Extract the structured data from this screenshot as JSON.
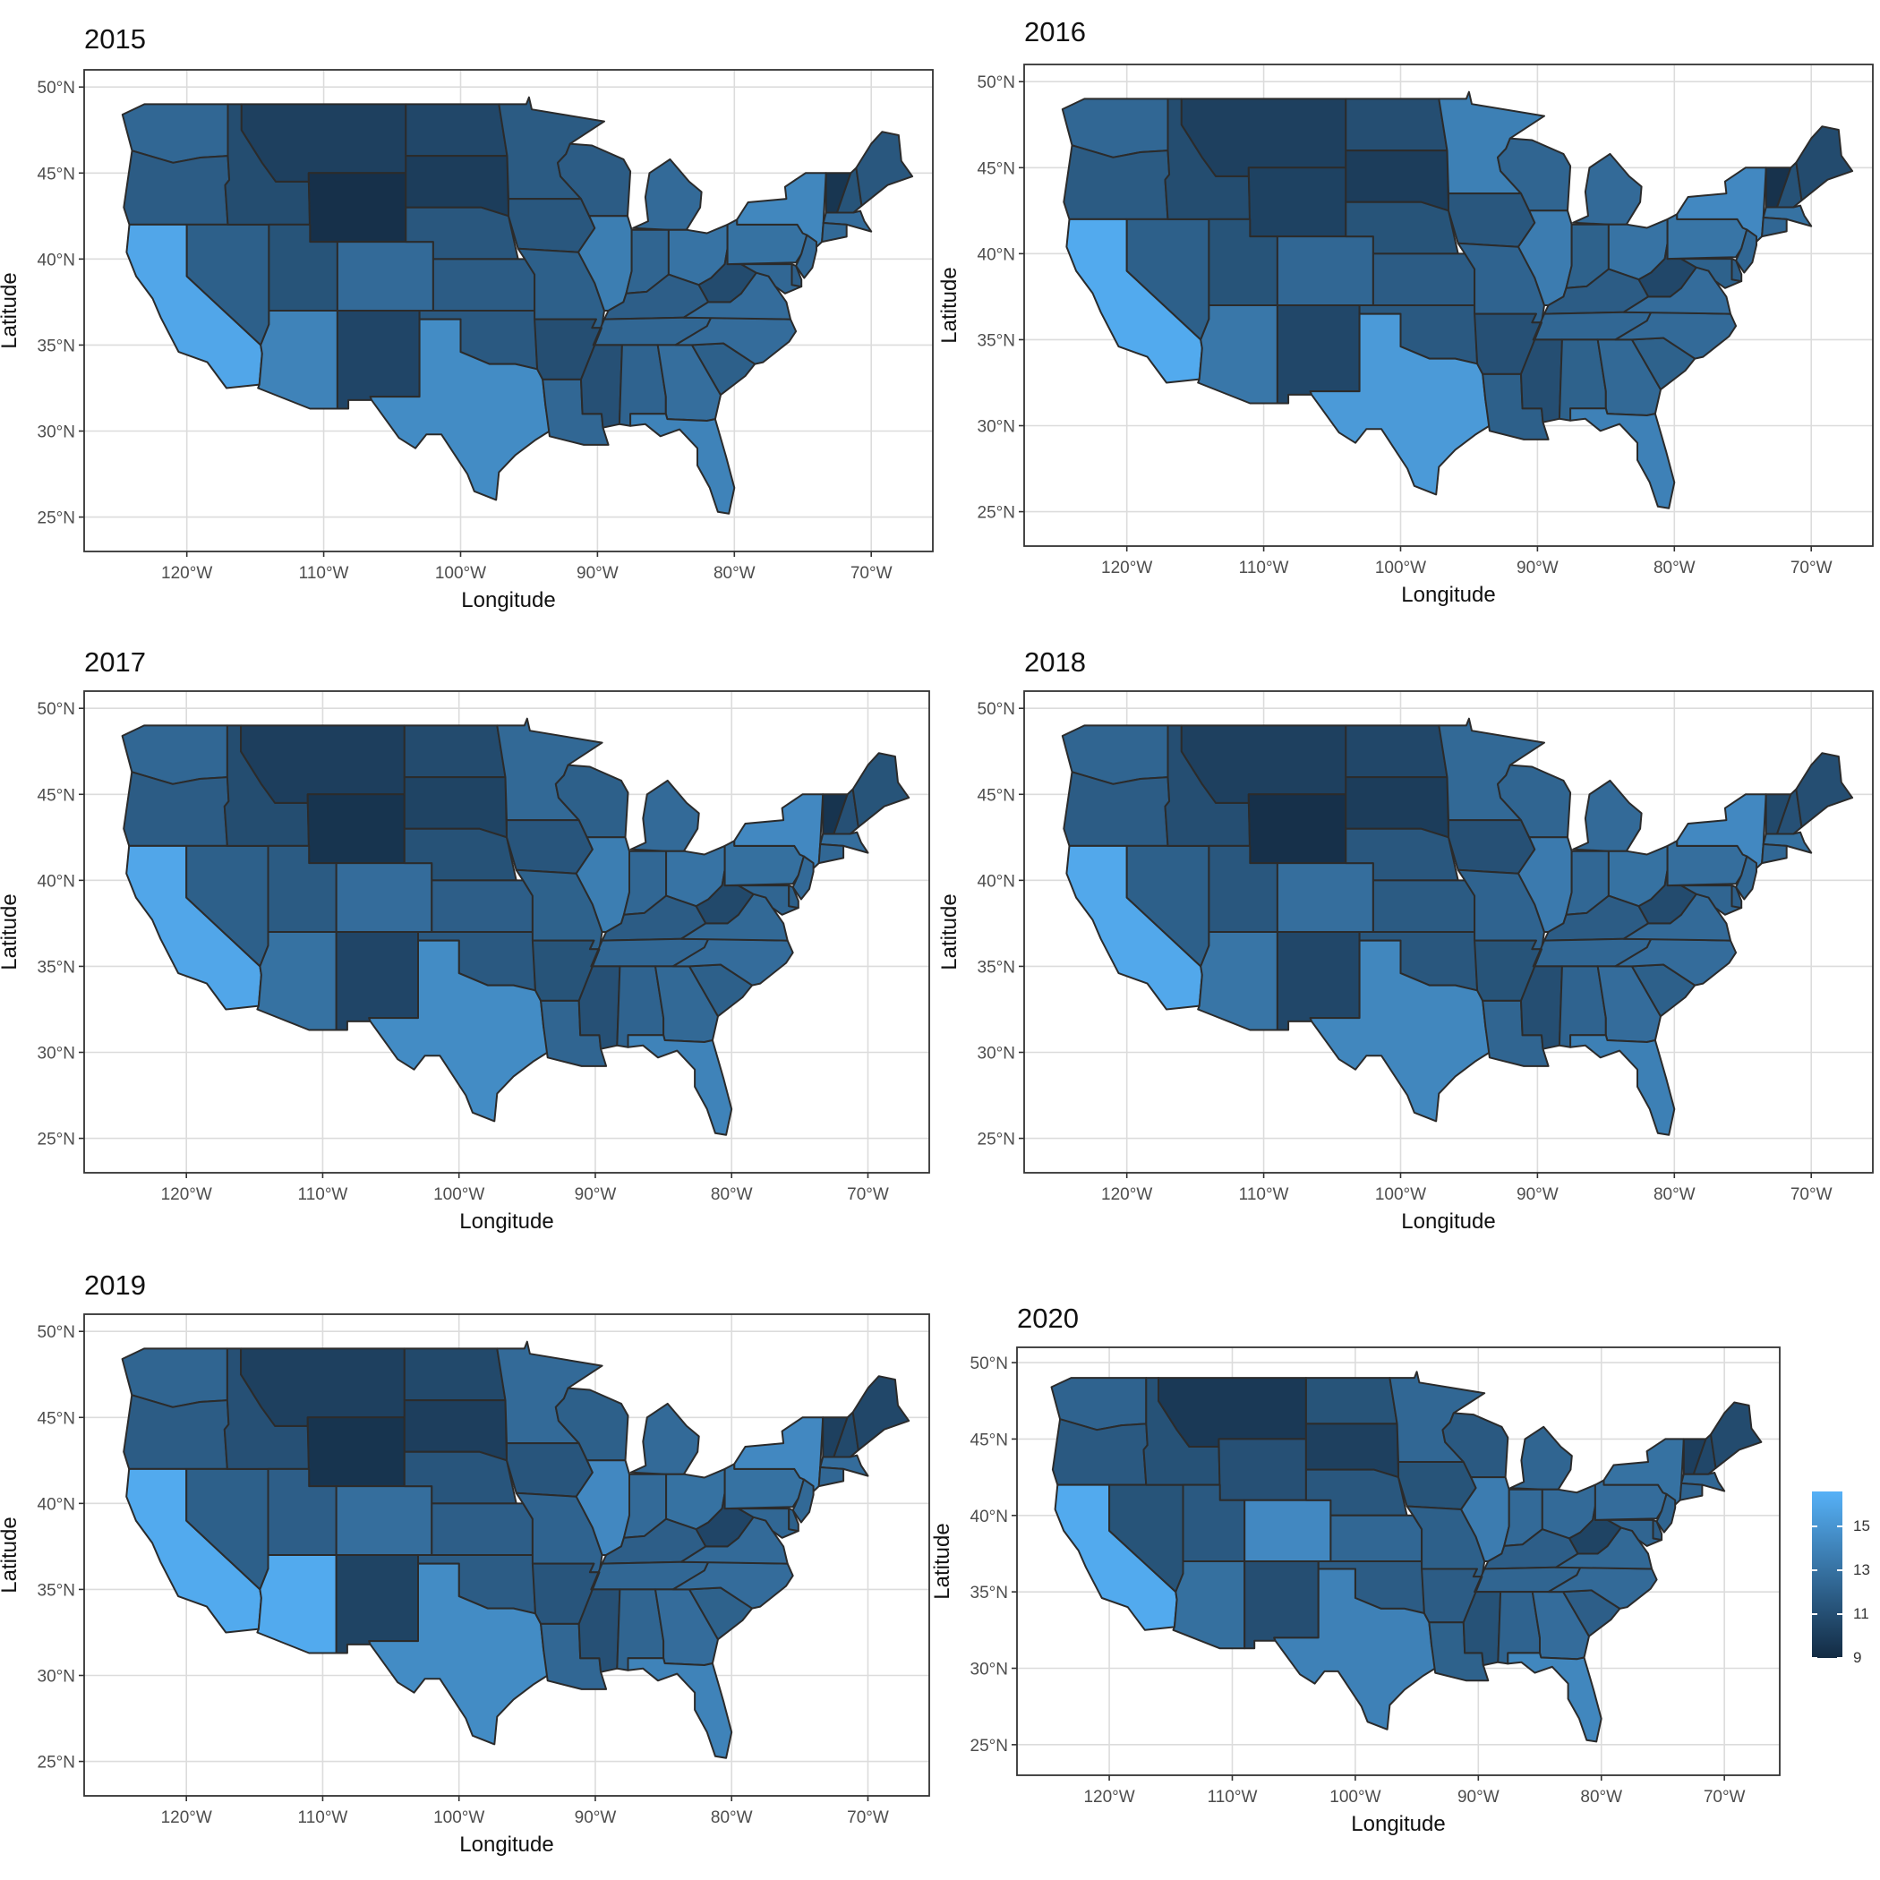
{
  "figure": {
    "x_axis_title": "Longitude",
    "y_axis_title": "Latitude",
    "lon_ticks": [
      {
        "value": -120,
        "label": "120°W"
      },
      {
        "value": -110,
        "label": "110°W"
      },
      {
        "value": -100,
        "label": "100°W"
      },
      {
        "value": -90,
        "label": "90°W"
      },
      {
        "value": -80,
        "label": "80°W"
      },
      {
        "value": -70,
        "label": "70°W"
      }
    ],
    "lat_ticks": [
      {
        "value": 25,
        "label": "25°N"
      },
      {
        "value": 30,
        "label": "30°N"
      },
      {
        "value": 35,
        "label": "35°N"
      },
      {
        "value": 40,
        "label": "40°N"
      },
      {
        "value": 45,
        "label": "45°N"
      },
      {
        "value": 50,
        "label": "50°N"
      }
    ],
    "lon_range": [
      -127.5,
      -65.5
    ],
    "lat_range": [
      23,
      51
    ],
    "colors": {
      "low": "#132b43",
      "high": "#56b1f7",
      "state_border": "#2b2b2b",
      "grid": "#dcdcdc",
      "panel_border": "#333333"
    }
  },
  "legend": {
    "title": "",
    "min": 9,
    "max": 16.6,
    "ticks": [
      {
        "value": 15,
        "label": "15"
      },
      {
        "value": 13,
        "label": "13"
      },
      {
        "value": 11,
        "label": "11"
      },
      {
        "value": 9,
        "label": "9"
      }
    ]
  },
  "panels": [
    {
      "year": "2015"
    },
    {
      "year": "2016"
    },
    {
      "year": "2017"
    },
    {
      "year": "2018"
    },
    {
      "year": "2019"
    },
    {
      "year": "2020"
    }
  ],
  "state_values": {
    "WA": [
      12.4,
      12.4,
      12.4,
      12.3,
      12.3,
      12.2
    ],
    "OR": [
      11.8,
      11.7,
      11.8,
      11.8,
      11.8,
      11.6
    ],
    "CA": [
      16.0,
      16.2,
      16.0,
      16.1,
      16.2,
      16.2
    ],
    "NV": [
      12.0,
      12.0,
      12.0,
      12.0,
      12.0,
      11.3
    ],
    "ID": [
      10.9,
      10.9,
      10.9,
      11.0,
      11.1,
      11.2
    ],
    "MT": [
      10.2,
      10.2,
      10.1,
      10.2,
      10.2,
      9.8
    ],
    "WY": [
      9.3,
      10.3,
      9.5,
      9.3,
      9.5,
      11.1
    ],
    "UT": [
      11.3,
      11.3,
      11.7,
      11.5,
      11.9,
      11.6
    ],
    "AZ": [
      14.0,
      13.3,
      13.0,
      13.2,
      16.2,
      12.9
    ],
    "CO": [
      12.6,
      12.4,
      12.7,
      12.8,
      12.8,
      14.3
    ],
    "NM": [
      10.5,
      10.6,
      10.5,
      10.6,
      10.4,
      11.0
    ],
    "ND": [
      10.6,
      11.0,
      10.8,
      10.6,
      10.7,
      11.3
    ],
    "SD": [
      10.0,
      10.0,
      10.4,
      10.0,
      10.1,
      10.2
    ],
    "NE": [
      11.5,
      11.3,
      11.2,
      11.5,
      11.4,
      11.5
    ],
    "KS": [
      11.8,
      11.8,
      11.9,
      11.7,
      11.9,
      12.4
    ],
    "OK": [
      11.6,
      11.6,
      11.6,
      11.5,
      11.8,
      11.8
    ],
    "TX": [
      14.5,
      15.3,
      14.5,
      14.2,
      14.5,
      13.9
    ],
    "MN": [
      11.7,
      13.8,
      12.5,
      12.5,
      12.6,
      12.4
    ],
    "IA": [
      11.5,
      11.5,
      11.4,
      11.1,
      11.4,
      11.3
    ],
    "MO": [
      12.0,
      12.2,
      12.1,
      12.2,
      12.2,
      12.0
    ],
    "AR": [
      11.0,
      11.1,
      11.3,
      11.3,
      11.4,
      11.8
    ],
    "LA": [
      12.4,
      12.0,
      12.3,
      12.3,
      12.4,
      12.1
    ],
    "WI": [
      11.8,
      12.3,
      12.0,
      12.3,
      12.0,
      11.6
    ],
    "IL": [
      13.7,
      13.6,
      13.7,
      13.5,
      14.3,
      13.6
    ],
    "MI": [
      12.6,
      12.6,
      12.6,
      12.6,
      12.6,
      12.3
    ],
    "IN": [
      12.3,
      12.1,
      12.4,
      12.4,
      12.6,
      12.6
    ],
    "OH": [
      13.1,
      13.1,
      13.1,
      13.0,
      13.0,
      12.6
    ],
    "KY": [
      11.9,
      11.8,
      11.8,
      11.8,
      11.9,
      11.9
    ],
    "TN": [
      12.4,
      12.4,
      12.4,
      12.4,
      12.4,
      12.3
    ],
    "MS": [
      11.1,
      11.0,
      11.1,
      11.0,
      11.1,
      11.2
    ],
    "AL": [
      12.2,
      12.1,
      12.2,
      12.2,
      12.3,
      12.2
    ],
    "GA": [
      12.8,
      12.5,
      12.5,
      12.7,
      12.7,
      12.7
    ],
    "FL": [
      14.0,
      13.9,
      14.0,
      13.8,
      14.0,
      14.2
    ],
    "SC": [
      12.0,
      12.1,
      12.0,
      12.0,
      12.1,
      11.9
    ],
    "NC": [
      12.7,
      12.6,
      12.7,
      12.7,
      12.7,
      12.6
    ],
    "VA": [
      12.7,
      12.7,
      12.5,
      12.6,
      12.6,
      12.5
    ],
    "WV": [
      10.8,
      10.6,
      10.7,
      10.8,
      10.5,
      10.4
    ],
    "PA": [
      13.0,
      13.2,
      12.9,
      12.8,
      13.0,
      12.7
    ],
    "NY": [
      14.2,
      14.3,
      14.3,
      14.3,
      14.3,
      13.0
    ],
    "VT": [
      9.6,
      9.4,
      9.5,
      10.7,
      10.2,
      10.1
    ],
    "NH": [
      11.3,
      11.2,
      11.1,
      11.1,
      10.7,
      10.6
    ],
    "ME": [
      11.5,
      10.8,
      11.3,
      11.0,
      10.6,
      10.8
    ],
    "MA": [
      12.7,
      13.0,
      12.8,
      12.9,
      12.7,
      12.4
    ],
    "CT": [
      12.5,
      12.4,
      12.4,
      12.4,
      12.4,
      12.2
    ],
    "NJ": [
      12.6,
      12.4,
      12.6,
      12.5,
      12.5,
      12.3
    ],
    "MD": [
      12.4,
      12.1,
      12.3,
      12.3,
      12.4,
      12.3
    ],
    "DE": [
      11.9,
      11.8,
      12.0,
      11.9,
      12.0,
      11.8
    ]
  }
}
